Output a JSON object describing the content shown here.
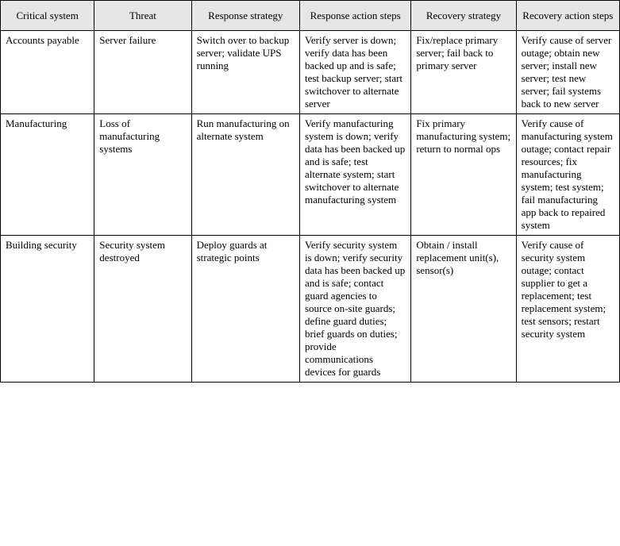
{
  "table": {
    "columns": [
      "Critical system",
      "Threat",
      "Response strategy",
      "Response action steps",
      "Recovery strategy",
      "Recovery action steps"
    ],
    "rows": [
      {
        "critical_system": "Accounts payable",
        "threat": "Server failure",
        "response_strategy": "Switch over to backup server; validate UPS running",
        "response_action_steps": "Verify server is down; verify data has been backed up and is safe; test backup server; start switchover to alternate server",
        "recovery_strategy": "Fix/replace primary server; fail back to primary server",
        "recovery_action_steps": "Verify cause of server outage; obtain new server; install new server; test new server; fail systems back to new server"
      },
      {
        "critical_system": "Manufacturing",
        "threat": "Loss of manufacturing systems",
        "response_strategy": "Run manufacturing on alternate system",
        "response_action_steps": "Verify manufacturing system is down; verify data has been backed up and is safe; test alternate system; start switchover to alternate manufacturing system",
        "recovery_strategy": "Fix primary manufacturing system; return to normal ops",
        "recovery_action_steps": "Verify cause of manufacturing system outage; contact repair resources; fix manufacturing system; test system; fail manufacturing app back to repaired system"
      },
      {
        "critical_system": "Building security",
        "threat": "Security system destroyed",
        "response_strategy": "Deploy guards at strategic points",
        "response_action_steps": "Verify security system is down; verify security data has been backed up and is safe; contact guard agencies to source on-site guards; define guard duties; brief guards on duties; provide communications devices for guards",
        "recovery_strategy": "Obtain / install replacement unit(s), sensor(s)",
        "recovery_action_steps": "Verify cause of security system outage; contact supplier to get a replacement; test replacement system; test sensors; restart security system"
      }
    ]
  }
}
